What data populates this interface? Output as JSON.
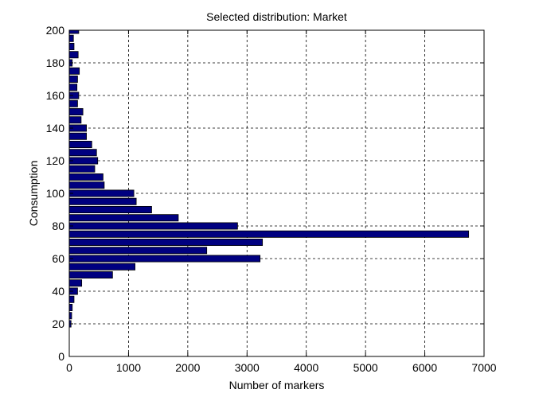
{
  "chart_data": {
    "type": "bar",
    "orientation": "horizontal",
    "title": "Selected distribution: Market",
    "xlabel": "Number of markers",
    "ylabel": "Consumption",
    "xlim": [
      0,
      7000
    ],
    "ylim": [
      0,
      200
    ],
    "xticks": [
      0,
      1000,
      2000,
      3000,
      4000,
      5000,
      6000,
      7000
    ],
    "yticks": [
      0,
      20,
      40,
      60,
      80,
      100,
      120,
      140,
      160,
      180,
      200
    ],
    "grid": true,
    "legend": "none",
    "bar_color": "#000080",
    "bar_edge_color": "#000000",
    "bin_width": 5,
    "y": [
      20,
      25,
      30,
      35,
      40,
      45,
      50,
      55,
      60,
      65,
      70,
      75,
      80,
      85,
      90,
      95,
      100,
      105,
      110,
      115,
      120,
      125,
      130,
      135,
      140,
      145,
      150,
      155,
      160,
      165,
      170,
      175,
      180,
      185,
      190,
      195,
      200
    ],
    "values": [
      30,
      40,
      50,
      80,
      140,
      210,
      730,
      1110,
      3220,
      2320,
      3260,
      6740,
      2840,
      1840,
      1390,
      1130,
      1090,
      590,
      570,
      430,
      480,
      460,
      380,
      290,
      290,
      200,
      230,
      140,
      160,
      130,
      140,
      170,
      50,
      150,
      80,
      70,
      160
    ]
  }
}
